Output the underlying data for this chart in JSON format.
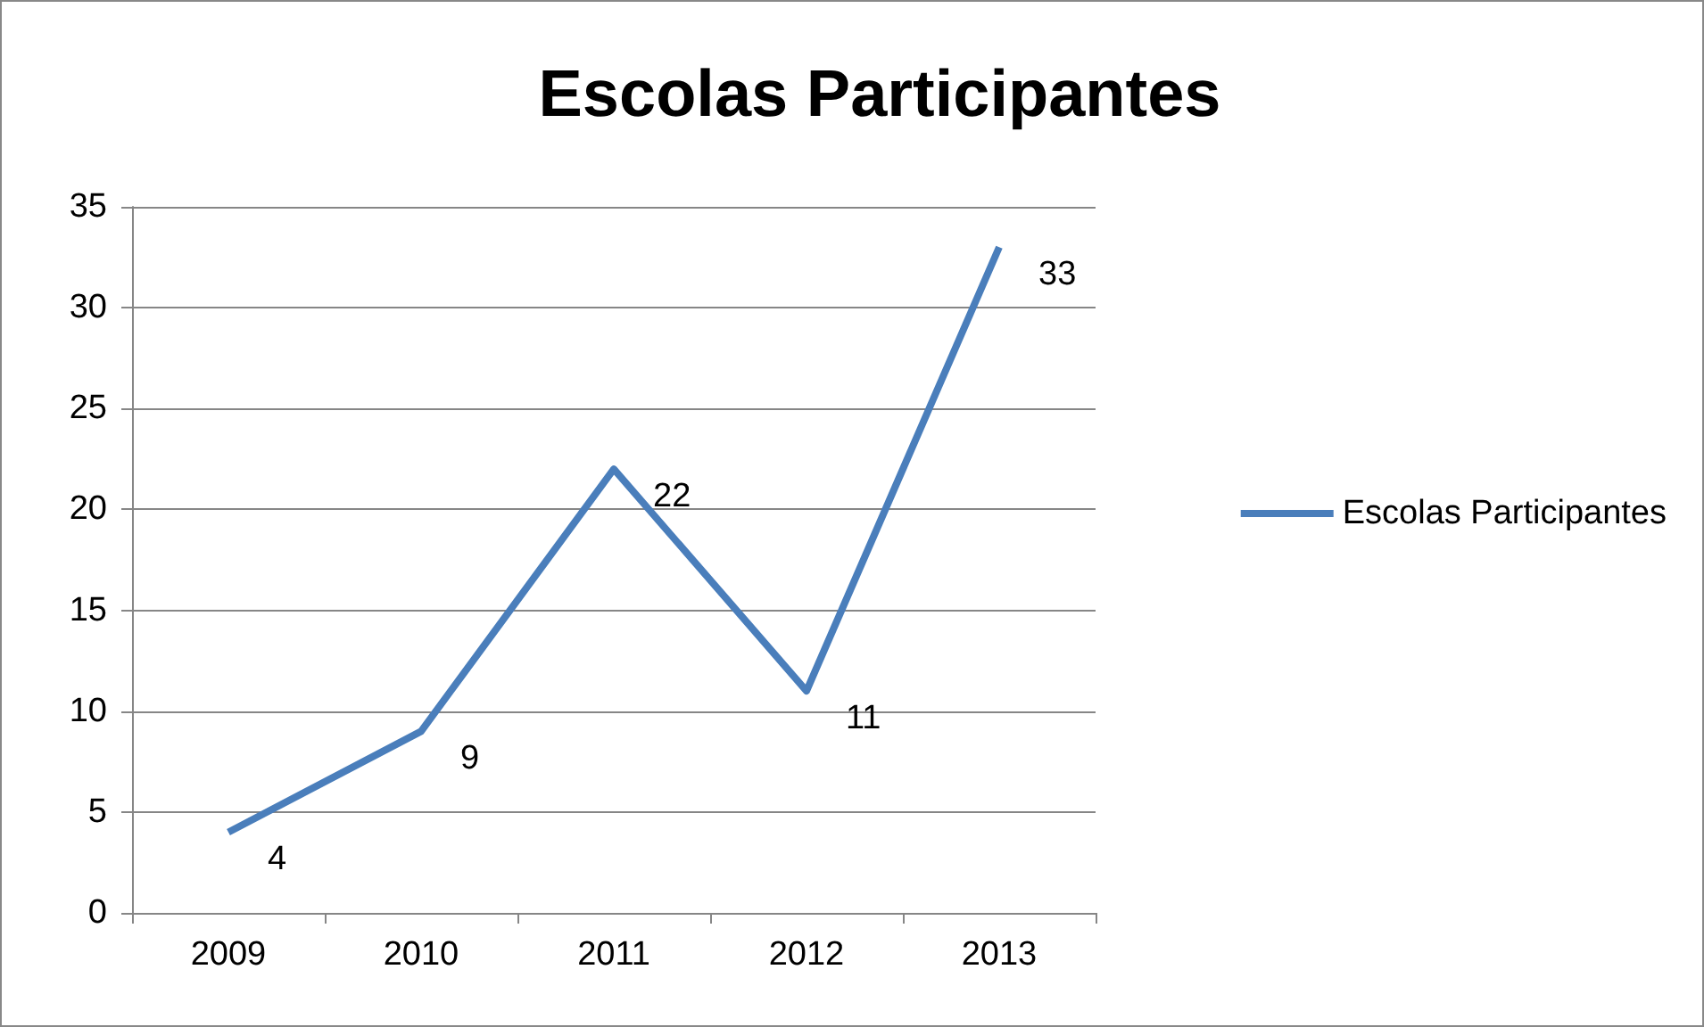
{
  "chart_data": {
    "type": "line",
    "title": "Escolas Participantes",
    "categories": [
      "2009",
      "2010",
      "2011",
      "2012",
      "2013"
    ],
    "series": [
      {
        "name": "Escolas Participantes",
        "color": "#4a7ebb",
        "values": [
          4,
          9,
          22,
          11,
          33
        ]
      }
    ],
    "ylim": [
      0,
      35
    ],
    "yticks": [
      0,
      5,
      10,
      15,
      20,
      25,
      30,
      35
    ],
    "grid": "y",
    "legend": "right",
    "data_labels": true,
    "marker": "none",
    "line_style": "solid"
  }
}
